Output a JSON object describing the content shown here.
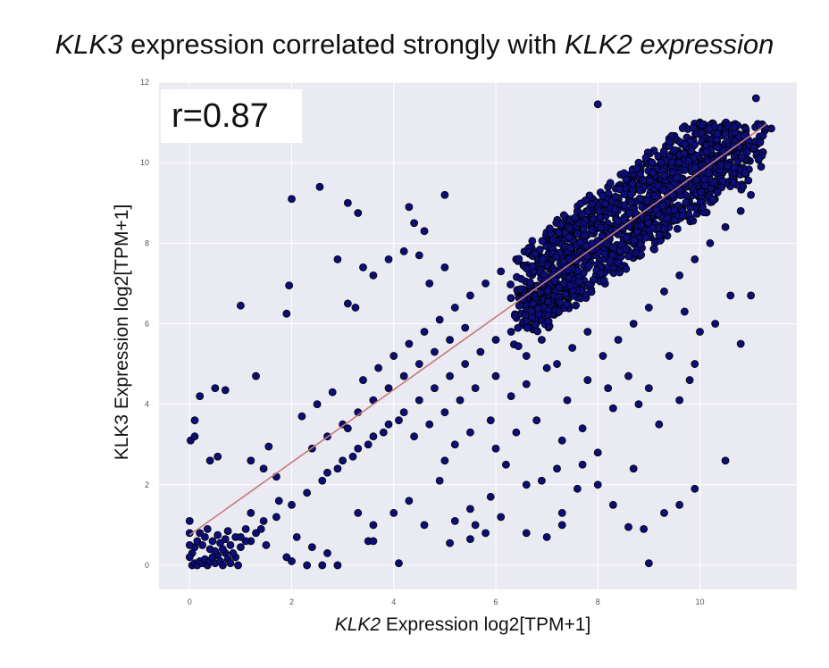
{
  "title": {
    "gene_a": "KLK3",
    "middle": " expression correlated strongly with ",
    "gene_b": "KLK2 expression"
  },
  "annotation": "r=0.87",
  "colors": {
    "plot_background": "#eaeaf2",
    "grid": "#ffffff",
    "point_fill": "#0d0d7a",
    "point_edge": "#000000",
    "fit_line": "#c47a7a"
  },
  "chart_data": {
    "type": "scatter",
    "xlabel_gene": "KLK2",
    "xlabel": " Expression log2[TPM+1]",
    "ylabel": "KLK3 Expression log2[TPM+1]",
    "xlim": [
      -0.6,
      11.9
    ],
    "ylim": [
      -0.6,
      12
    ],
    "xticks": [
      0,
      2,
      4,
      6,
      8,
      10
    ],
    "yticks": [
      0,
      2,
      4,
      6,
      8,
      10,
      12
    ],
    "grid": true,
    "fit_line": {
      "x": [
        0,
        11.3
      ],
      "y": [
        0.75,
        10.95
      ]
    },
    "r": 0.87,
    "points": [
      [
        0.05,
        0.0
      ],
      [
        0.1,
        0.05
      ],
      [
        0.15,
        0.0
      ],
      [
        0.2,
        0.1
      ],
      [
        0.25,
        0.05
      ],
      [
        0.3,
        0.15
      ],
      [
        0.35,
        0.0
      ],
      [
        0.4,
        0.1
      ],
      [
        0.45,
        0.2
      ],
      [
        0.5,
        0.05
      ],
      [
        0.55,
        0.25
      ],
      [
        0.6,
        0.1
      ],
      [
        0.65,
        0.0
      ],
      [
        0.7,
        0.3
      ],
      [
        0.75,
        0.15
      ],
      [
        0.8,
        0.05
      ],
      [
        0.9,
        0.2
      ],
      [
        0.95,
        0.0
      ],
      [
        0.05,
        0.3
      ],
      [
        0.1,
        0.45
      ],
      [
        0.15,
        0.6
      ],
      [
        0.2,
        0.8
      ],
      [
        0.25,
        0.5
      ],
      [
        0.3,
        0.7
      ],
      [
        0.35,
        0.9
      ],
      [
        0.4,
        0.4
      ],
      [
        0.45,
        0.6
      ],
      [
        0.5,
        0.35
      ],
      [
        0.55,
        0.75
      ],
      [
        0.6,
        0.55
      ],
      [
        0.65,
        0.4
      ],
      [
        0.7,
        0.65
      ],
      [
        0.75,
        0.85
      ],
      [
        0.8,
        0.5
      ],
      [
        0.85,
        0.3
      ],
      [
        0.9,
        0.7
      ],
      [
        1.0,
        0.45
      ],
      [
        1.1,
        0.9
      ],
      [
        1.2,
        0.6
      ],
      [
        1.3,
        0.8
      ],
      [
        0.0,
        0.2
      ],
      [
        0.0,
        0.5
      ],
      [
        0.0,
        0.8
      ],
      [
        0.0,
        1.1
      ],
      [
        0.02,
        3.1
      ],
      [
        0.1,
        3.2
      ],
      [
        0.1,
        3.6
      ],
      [
        0.2,
        4.2
      ],
      [
        0.5,
        4.4
      ],
      [
        0.7,
        4.35
      ],
      [
        0.55,
        2.7
      ],
      [
        0.4,
        2.6
      ],
      [
        1.3,
        4.7
      ],
      [
        1.0,
        6.45
      ],
      [
        1.9,
        6.25
      ],
      [
        1.95,
        6.95
      ],
      [
        2.0,
        9.1
      ],
      [
        2.55,
        9.4
      ],
      [
        3.1,
        9.0
      ],
      [
        3.3,
        8.75
      ],
      [
        2.9,
        7.6
      ],
      [
        3.4,
        7.4
      ],
      [
        3.1,
        6.5
      ],
      [
        3.25,
        6.4
      ],
      [
        3.6,
        7.2
      ],
      [
        3.9,
        7.6
      ],
      [
        4.2,
        7.8
      ],
      [
        4.5,
        7.7
      ],
      [
        4.6,
        8.3
      ],
      [
        4.3,
        8.9
      ],
      [
        4.4,
        8.5
      ],
      [
        5.0,
        9.2
      ],
      [
        4.7,
        7.0
      ],
      [
        5.0,
        7.4
      ],
      [
        1.2,
        2.6
      ],
      [
        1.45,
        2.4
      ],
      [
        1.55,
        2.95
      ],
      [
        1.7,
        2.2
      ],
      [
        1.75,
        1.6
      ],
      [
        1.45,
        1.1
      ],
      [
        1.2,
        1.3
      ],
      [
        1.0,
        0.7
      ],
      [
        1.5,
        0.5
      ],
      [
        1.9,
        0.2
      ],
      [
        2.0,
        0.1
      ],
      [
        2.3,
        0.0
      ],
      [
        2.6,
        0.0
      ],
      [
        2.9,
        0.0
      ],
      [
        3.3,
        1.3
      ],
      [
        3.6,
        1.0
      ],
      [
        3.5,
        0.6
      ],
      [
        4.1,
        0.05
      ],
      [
        2.1,
        0.7
      ],
      [
        2.4,
        0.45
      ],
      [
        2.7,
        0.3
      ],
      [
        3.6,
        0.6
      ],
      [
        4.0,
        1.3
      ],
      [
        4.6,
        1.0
      ],
      [
        4.3,
        1.6
      ],
      [
        5.1,
        0.55
      ],
      [
        5.5,
        0.65
      ],
      [
        5.6,
        1.0
      ],
      [
        5.8,
        0.8
      ],
      [
        6.1,
        1.2
      ],
      [
        6.6,
        0.8
      ],
      [
        7.0,
        0.7
      ],
      [
        7.3,
        1.3
      ],
      [
        7.6,
        1.9
      ],
      [
        7.3,
        1.0
      ],
      [
        8.0,
        2.0
      ],
      [
        8.3,
        1.5
      ],
      [
        8.6,
        0.95
      ],
      [
        8.9,
        0.9
      ],
      [
        9.0,
        0.05
      ],
      [
        9.3,
        1.3
      ],
      [
        9.6,
        1.5
      ],
      [
        9.9,
        1.9
      ],
      [
        10.5,
        2.6
      ],
      [
        8.7,
        2.4
      ],
      [
        8.0,
        2.8
      ],
      [
        7.7,
        2.5
      ],
      [
        7.2,
        2.4
      ],
      [
        6.9,
        2.1
      ],
      [
        6.6,
        2.0
      ],
      [
        6.2,
        2.5
      ],
      [
        5.9,
        1.7
      ],
      [
        5.5,
        1.4
      ],
      [
        5.2,
        1.1
      ],
      [
        4.9,
        2.1
      ],
      [
        5.0,
        2.6
      ],
      [
        5.2,
        3.0
      ],
      [
        5.5,
        3.3
      ],
      [
        5.9,
        3.6
      ],
      [
        6.0,
        2.9
      ],
      [
        6.4,
        3.3
      ],
      [
        6.8,
        3.6
      ],
      [
        7.3,
        3.1
      ],
      [
        7.7,
        3.4
      ],
      [
        8.3,
        3.9
      ],
      [
        8.8,
        4.0
      ],
      [
        9.2,
        3.5
      ],
      [
        9.6,
        4.1
      ],
      [
        9.8,
        4.6
      ],
      [
        9.0,
        4.4
      ],
      [
        8.6,
        4.7
      ],
      [
        8.2,
        4.4
      ],
      [
        7.8,
        4.6
      ],
      [
        7.4,
        4.1
      ],
      [
        7.0,
        4.9
      ],
      [
        6.6,
        4.5
      ],
      [
        6.3,
        4.2
      ],
      [
        6.0,
        4.7
      ],
      [
        5.6,
        4.4
      ],
      [
        5.3,
        4.1
      ],
      [
        5.0,
        3.8
      ],
      [
        4.7,
        3.5
      ],
      [
        4.4,
        3.2
      ],
      [
        4.1,
        3.6
      ],
      [
        3.8,
        3.3
      ],
      [
        3.5,
        3.0
      ],
      [
        3.2,
        2.7
      ],
      [
        2.9,
        2.4
      ],
      [
        2.6,
        2.1
      ],
      [
        2.3,
        1.8
      ],
      [
        2.0,
        1.5
      ],
      [
        1.7,
        1.2
      ],
      [
        1.4,
        0.9
      ],
      [
        1.1,
        0.6
      ],
      [
        2.4,
        2.9
      ],
      [
        2.7,
        3.2
      ],
      [
        3.0,
        3.5
      ],
      [
        3.3,
        3.8
      ],
      [
        3.6,
        4.1
      ],
      [
        3.9,
        4.4
      ],
      [
        4.2,
        4.7
      ],
      [
        4.5,
        5.0
      ],
      [
        4.8,
        5.3
      ],
      [
        5.1,
        5.6
      ],
      [
        5.4,
        5.9
      ],
      [
        2.2,
        3.7
      ],
      [
        2.5,
        4.0
      ],
      [
        2.8,
        4.3
      ],
      [
        3.1,
        3.4
      ],
      [
        3.4,
        4.6
      ],
      [
        3.7,
        4.9
      ],
      [
        4.0,
        5.2
      ],
      [
        4.3,
        5.5
      ],
      [
        4.6,
        5.8
      ],
      [
        4.9,
        6.1
      ],
      [
        5.2,
        6.4
      ],
      [
        5.5,
        6.7
      ],
      [
        5.8,
        7.0
      ],
      [
        6.1,
        7.3
      ],
      [
        6.4,
        7.6
      ],
      [
        6.7,
        7.9
      ],
      [
        7.0,
        8.2
      ],
      [
        7.3,
        8.5
      ],
      [
        7.6,
        8.8
      ],
      [
        7.9,
        9.1
      ],
      [
        8.2,
        9.4
      ],
      [
        8.5,
        9.7
      ],
      [
        8.8,
        10.0
      ],
      [
        9.1,
        10.3
      ],
      [
        9.4,
        10.6
      ],
      [
        9.7,
        10.9
      ],
      [
        10.0,
        11.0
      ],
      [
        10.3,
        10.7
      ],
      [
        10.6,
        10.4
      ],
      [
        10.9,
        10.8
      ],
      [
        11.1,
        11.6
      ],
      [
        8.0,
        11.45
      ],
      [
        11.4,
        10.85
      ],
      [
        11.2,
        9.9
      ],
      [
        11.0,
        9.2
      ],
      [
        10.8,
        8.8
      ],
      [
        10.5,
        8.4
      ],
      [
        10.2,
        8.0
      ],
      [
        9.9,
        7.6
      ],
      [
        9.6,
        7.2
      ],
      [
        9.3,
        6.8
      ],
      [
        9.0,
        6.4
      ],
      [
        8.7,
        6.0
      ],
      [
        8.4,
        5.6
      ],
      [
        8.1,
        5.2
      ],
      [
        7.8,
        5.8
      ],
      [
        7.5,
        5.4
      ],
      [
        7.2,
        5.0
      ],
      [
        6.9,
        5.6
      ],
      [
        6.6,
        5.2
      ],
      [
        6.3,
        5.8
      ],
      [
        10.0,
        5.8
      ],
      [
        10.6,
        6.7
      ],
      [
        11.0,
        6.7
      ],
      [
        9.7,
        6.3
      ],
      [
        10.3,
        6.0
      ],
      [
        10.8,
        5.5
      ],
      [
        9.4,
        5.2
      ],
      [
        9.9,
        5.0
      ],
      [
        6.0,
        5.6
      ],
      [
        5.7,
        5.3
      ],
      [
        5.4,
        5.0
      ],
      [
        5.1,
        4.7
      ],
      [
        4.8,
        4.4
      ],
      [
        4.5,
        4.1
      ],
      [
        4.2,
        3.8
      ],
      [
        3.9,
        3.5
      ],
      [
        3.6,
        3.2
      ],
      [
        3.3,
        2.9
      ],
      [
        3.0,
        2.6
      ],
      [
        2.7,
        2.3
      ]
    ]
  }
}
